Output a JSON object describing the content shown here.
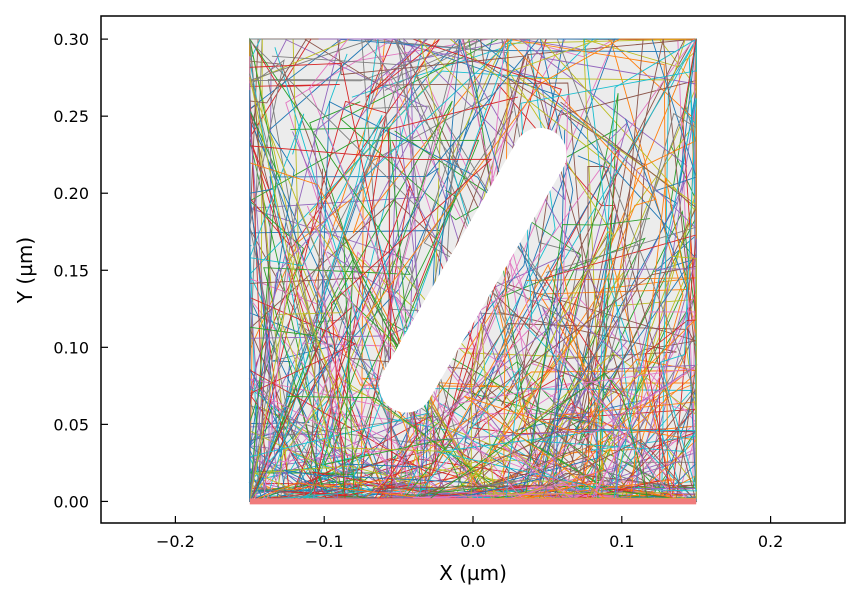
{
  "chart_data": {
    "type": "line",
    "title": "",
    "xlabel": "X (µm)",
    "ylabel": "Y (µm)",
    "xlim": [
      -0.25,
      0.25
    ],
    "ylim": [
      -0.014,
      0.315
    ],
    "grid": false,
    "legend": "none",
    "x_ticks": [
      -0.2,
      -0.1,
      0.0,
      0.1,
      0.2
    ],
    "x_tick_labels": [
      "−0.2",
      "−0.1",
      "0.0",
      "0.1",
      "0.2"
    ],
    "y_ticks": [
      0.0,
      0.05,
      0.1,
      0.15,
      0.2,
      0.25,
      0.3
    ],
    "y_tick_labels": [
      "0.00",
      "0.05",
      "0.10",
      "0.15",
      "0.20",
      "0.25",
      "0.30"
    ],
    "domain_region": {
      "x": [
        -0.15,
        0.15
      ],
      "y": [
        0.0,
        0.3
      ],
      "color": "#ececec"
    },
    "obstacle": {
      "x1": -0.045,
      "y1": 0.075,
      "x2": 0.045,
      "y2": 0.225,
      "half_width": 0.018,
      "color": "#ffffff"
    },
    "emitter": {
      "x": [
        -0.15,
        0.15
      ],
      "y": 0.0,
      "color": "#f07b7b"
    },
    "trajectory_count": 300,
    "palette": [
      "#1f77b4",
      "#ff7f0e",
      "#2ca02c",
      "#d62728",
      "#9467bd",
      "#8c564b",
      "#e377c2",
      "#7f7f7f",
      "#bcbd22",
      "#17becf"
    ]
  }
}
